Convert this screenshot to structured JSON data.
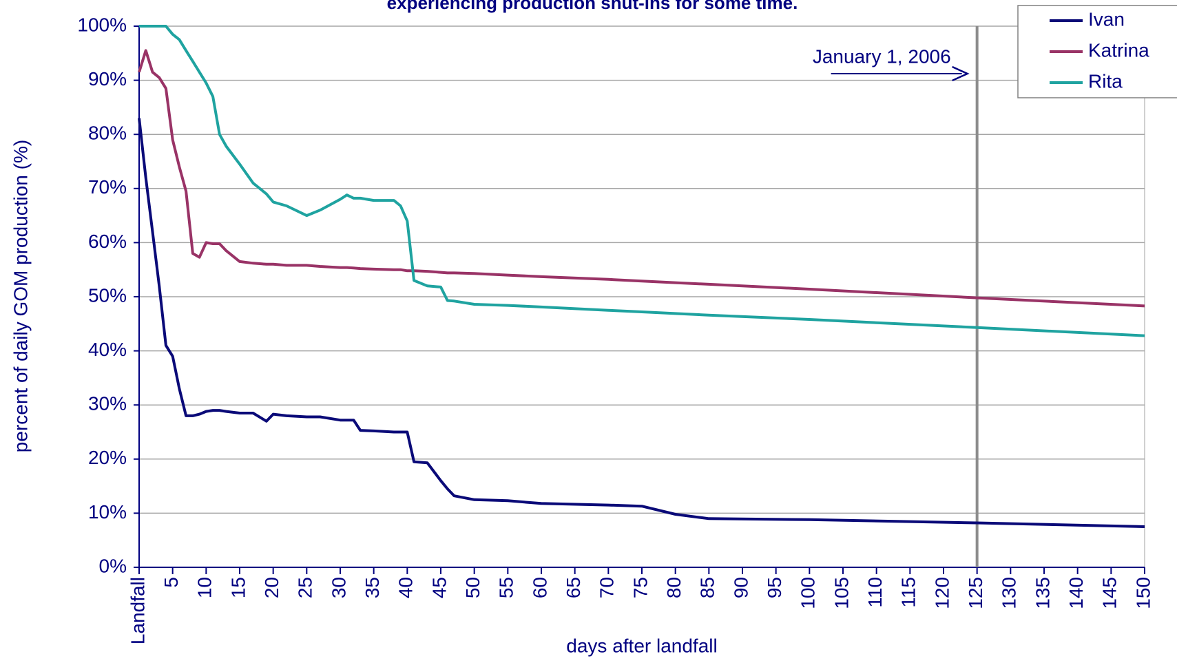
{
  "chart_data": {
    "type": "line",
    "title": "experiencing production shut-ins for some time.",
    "x_label": "days after landfall",
    "y_label": "percent of daily GOM production (%)",
    "x": [
      0,
      1,
      2,
      3,
      4,
      5,
      6,
      7,
      8,
      9,
      10,
      11,
      12,
      13,
      15,
      17,
      19,
      20,
      22,
      25,
      27,
      30,
      31,
      32,
      33,
      35,
      38,
      39,
      40,
      41,
      43,
      45,
      46,
      47,
      50,
      55,
      60,
      70,
      75,
      80,
      85,
      100,
      125,
      150
    ],
    "series": [
      {
        "name": "Ivan",
        "color": "#0a0a78",
        "values": [
          83,
          72,
          62,
          52,
          41,
          39,
          33,
          28,
          28,
          28.3,
          28.8,
          29,
          29,
          28.8,
          28.5,
          28.5,
          27,
          28.3,
          28,
          27.8,
          27.8,
          27.2,
          27.2,
          27.2,
          25.3,
          25.2,
          25,
          25,
          25,
          19.5,
          19.3,
          16,
          14.5,
          13.2,
          12.5,
          12.3,
          11.8,
          11.5,
          11.3,
          9.8,
          9,
          8.8,
          8.2,
          7.5
        ]
      },
      {
        "name": "Katrina",
        "color": "#993366",
        "values": [
          91.5,
          95.5,
          91.5,
          90.5,
          88.5,
          79,
          74,
          69.5,
          58,
          57.3,
          60,
          59.8,
          59.8,
          58.5,
          56.5,
          56.2,
          56,
          56,
          55.8,
          55.8,
          55.6,
          55.4,
          55.4,
          55.3,
          55.2,
          55.1,
          55,
          55,
          54.8,
          54.8,
          54.7,
          54.5,
          54.4,
          54.4,
          54.3,
          54,
          53.7,
          53.2,
          52.9,
          52.6,
          52.3,
          51.4,
          49.8,
          48.3
        ]
      },
      {
        "name": "Rita",
        "color": "#1fa3a0",
        "values": [
          100,
          100,
          100,
          100,
          100,
          98.5,
          97.5,
          95.5,
          93.5,
          91.5,
          89.5,
          87,
          80,
          77.8,
          74.5,
          71,
          69,
          67.5,
          66.8,
          65,
          66,
          68,
          68.8,
          68.2,
          68.2,
          67.8,
          67.8,
          66.8,
          64,
          53,
          52,
          51.8,
          49.3,
          49.2,
          48.6,
          48.4,
          48.1,
          47.5,
          47.2,
          46.9,
          46.6,
          45.8,
          44.3,
          42.8
        ]
      }
    ],
    "xlim": [
      0,
      150
    ],
    "xticks": [
      {
        "value": 0,
        "label": "Landfall"
      },
      5,
      10,
      15,
      20,
      25,
      30,
      35,
      40,
      45,
      50,
      55,
      60,
      65,
      70,
      75,
      80,
      85,
      90,
      95,
      100,
      105,
      110,
      115,
      120,
      125,
      130,
      135,
      140,
      145,
      150
    ],
    "ylim": [
      0,
      100
    ],
    "yticks": [
      {
        "value": 0,
        "label": "0%"
      },
      {
        "value": 10,
        "label": "10%"
      },
      {
        "value": 20,
        "label": "20%"
      },
      {
        "value": 30,
        "label": "30%"
      },
      {
        "value": 40,
        "label": "40%"
      },
      {
        "value": 50,
        "label": "50%"
      },
      {
        "value": 60,
        "label": "60%"
      },
      {
        "value": 70,
        "label": "70%"
      },
      {
        "value": 80,
        "label": "80%"
      },
      {
        "value": 90,
        "label": "90%"
      },
      {
        "value": 100,
        "label": "100%"
      }
    ],
    "grid": true,
    "legend": "upper right",
    "annotations": [
      {
        "text": "January 1, 2006",
        "x": 125
      }
    ]
  }
}
